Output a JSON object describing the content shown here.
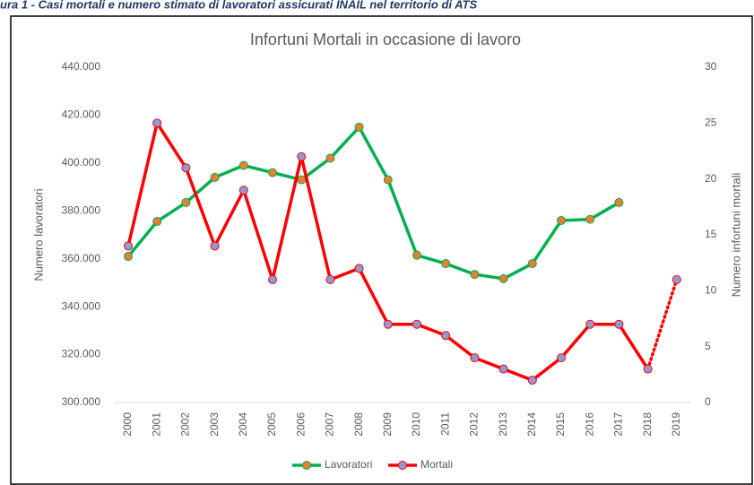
{
  "caption": "ura 1 - Casi mortali e numero stimato di lavoratori assicurati INAIL nel territorio di ATS",
  "chart_data": {
    "type": "line",
    "title": "Infortuni Mortali in occasione di lavoro",
    "ylabel": "Numero lavoratori",
    "y2label": "Numero infortuni mortali",
    "categories": [
      "2000",
      "2001",
      "2002",
      "2003",
      "2004",
      "2005",
      "2006",
      "2007",
      "2008",
      "2009",
      "2010",
      "2011",
      "2012",
      "2013",
      "2014",
      "2015",
      "2016",
      "2017",
      "2018",
      "2019"
    ],
    "series": [
      {
        "name": "Lavoratori",
        "color": "#00b050",
        "marker_color": "#ed7d31",
        "axis": "y",
        "values": [
          361000,
          375600,
          383500,
          394000,
          399000,
          396000,
          393000,
          402000,
          415000,
          393000,
          361500,
          358000,
          353500,
          351700,
          358000,
          376000,
          376500,
          383500,
          null,
          null
        ]
      },
      {
        "name": "Mortali",
        "color": "#ff0000",
        "marker_color": "#8e9ad6",
        "axis": "y2",
        "dashed_last_segment": true,
        "values": [
          14,
          25,
          21,
          14,
          19,
          11,
          22,
          11,
          12,
          7,
          7,
          6,
          4,
          3,
          2,
          4,
          7,
          7,
          3,
          11
        ]
      }
    ],
    "ylim": [
      300000,
      440000
    ],
    "yticks": [
      {
        "value": 300000,
        "label": "300.000"
      },
      {
        "value": 320000,
        "label": "320.000"
      },
      {
        "value": 340000,
        "label": "340.000"
      },
      {
        "value": 360000,
        "label": "360.000"
      },
      {
        "value": 380000,
        "label": "380.000"
      },
      {
        "value": 400000,
        "label": "400.000"
      },
      {
        "value": 420000,
        "label": "420.000"
      },
      {
        "value": 440000,
        "label": "440.000"
      }
    ],
    "y2lim": [
      0,
      30
    ],
    "y2ticks": [
      0,
      5,
      10,
      15,
      20,
      25,
      30
    ],
    "legend": "bottom"
  }
}
